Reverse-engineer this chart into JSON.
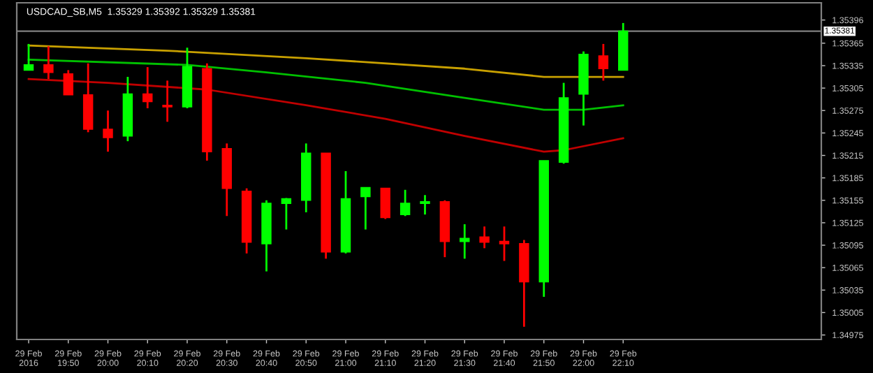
{
  "chart_data": {
    "type": "candlestick",
    "title": "USDCAD_SB,M5  1.35329 1.35392 1.35329 1.35381",
    "x": [
      "2016-02-29T19:40",
      "2016-02-29T19:45",
      "2016-02-29T19:50",
      "2016-02-29T19:55",
      "2016-02-29T20:00",
      "2016-02-29T20:05",
      "2016-02-29T20:10",
      "2016-02-29T20:15",
      "2016-02-29T20:20",
      "2016-02-29T20:25",
      "2016-02-29T20:30",
      "2016-02-29T20:35",
      "2016-02-29T20:40",
      "2016-02-29T20:45",
      "2016-02-29T20:50",
      "2016-02-29T20:55",
      "2016-02-29T21:00",
      "2016-02-29T21:05",
      "2016-02-29T21:10",
      "2016-02-29T21:15",
      "2016-02-29T21:20",
      "2016-02-29T21:25",
      "2016-02-29T21:30",
      "2016-02-29T21:35",
      "2016-02-29T21:40",
      "2016-02-29T21:45",
      "2016-02-29T21:50",
      "2016-02-29T21:55",
      "2016-02-29T22:00",
      "2016-02-29T22:05",
      "2016-02-29T22:10"
    ],
    "ohlc": [
      [
        1.35329,
        1.35364,
        1.35329,
        1.35336
      ],
      [
        1.35336,
        1.35361,
        1.35317,
        1.35326
      ],
      [
        1.35324,
        1.35329,
        1.35296,
        1.35296
      ],
      [
        1.35296,
        1.35338,
        1.35246,
        1.3525
      ],
      [
        1.3525,
        1.35275,
        1.3522,
        1.35239
      ],
      [
        1.35241,
        1.3532,
        1.35234,
        1.35297
      ],
      [
        1.35297,
        1.35333,
        1.35278,
        1.35287
      ],
      [
        1.35282,
        1.35315,
        1.3526,
        1.3528
      ],
      [
        1.3528,
        1.35359,
        1.35278,
        1.35334
      ],
      [
        1.35331,
        1.35338,
        1.35208,
        1.3522
      ],
      [
        1.35224,
        1.35231,
        1.35134,
        1.35171
      ],
      [
        1.35167,
        1.35171,
        1.35084,
        1.35099
      ],
      [
        1.35097,
        1.35155,
        1.3506,
        1.35151
      ],
      [
        1.35151,
        1.35158,
        1.35116,
        1.35157
      ],
      [
        1.35155,
        1.35231,
        1.35139,
        1.35218
      ],
      [
        1.35218,
        1.35218,
        1.35077,
        1.35086
      ],
      [
        1.35086,
        1.35194,
        1.35084,
        1.35157
      ],
      [
        1.3516,
        1.35172,
        1.35116,
        1.35172
      ],
      [
        1.35171,
        1.35171,
        1.3513,
        1.35132
      ],
      [
        1.35136,
        1.35169,
        1.35134,
        1.35151
      ],
      [
        1.35151,
        1.35162,
        1.35136,
        1.35153
      ],
      [
        1.35153,
        1.35155,
        1.35079,
        1.351
      ],
      [
        1.351,
        1.35123,
        1.35077,
        1.35104
      ],
      [
        1.35106,
        1.3512,
        1.35091,
        1.35099
      ],
      [
        1.351,
        1.3512,
        1.35074,
        1.35097
      ],
      [
        1.35097,
        1.35102,
        1.34986,
        1.35046
      ],
      [
        1.35046,
        1.35208,
        1.35026,
        1.35208
      ],
      [
        1.35206,
        1.35312,
        1.35204,
        1.35292
      ],
      [
        1.35297,
        1.35354,
        1.35255,
        1.3535
      ],
      [
        1.35348,
        1.35364,
        1.35315,
        1.35331
      ],
      [
        1.35329,
        1.35392,
        1.35329,
        1.35381
      ]
    ],
    "colors": [
      "#00ff00",
      "#ff0000",
      "#ff0000",
      "#ff0000",
      "#ff0000",
      "#00ff00",
      "#ff0000",
      "#ff0000",
      "#00ff00",
      "#ff0000",
      "#ff0000",
      "#ff0000",
      "#00ff00",
      "#00ff00",
      "#00ff00",
      "#ff0000",
      "#00ff00",
      "#00ff00",
      "#ff0000",
      "#00ff00",
      "#00ff00",
      "#ff0000",
      "#00ff00",
      "#ff0000",
      "#ff0000",
      "#ff0000",
      "#00ff00",
      "#00ff00",
      "#00ff00",
      "#ff0000",
      "#00ff00"
    ],
    "series": [
      {
        "type": "line",
        "color": "#c8a000",
        "x": [
          "2016-02-29T19:40",
          "2016-02-29T20:15",
          "2016-02-29T20:50",
          "2016-02-29T21:30",
          "2016-02-29T21:50",
          "2016-02-29T22:10"
        ],
        "values": [
          1.35362,
          1.35355,
          1.35345,
          1.35331,
          1.3532,
          1.3532
        ]
      },
      {
        "type": "line",
        "color": "#00c000",
        "x": [
          "2016-02-29T19:40",
          "2016-02-29T20:20",
          "2016-02-29T20:40",
          "2016-02-29T21:05",
          "2016-02-29T21:30",
          "2016-02-29T21:50",
          "2016-02-29T22:00",
          "2016-02-29T22:10"
        ],
        "values": [
          1.35343,
          1.35336,
          1.35326,
          1.35312,
          1.35292,
          1.35276,
          1.35276,
          1.35282
        ]
      },
      {
        "type": "line",
        "color": "#c00000",
        "x": [
          "2016-02-29T19:40",
          "2016-02-29T20:00",
          "2016-02-29T20:25",
          "2016-02-29T20:50",
          "2016-02-29T21:10",
          "2016-02-29T21:30",
          "2016-02-29T21:50",
          "2016-02-29T21:55",
          "2016-02-29T22:10"
        ],
        "values": [
          1.35317,
          1.35312,
          1.35303,
          1.35282,
          1.35264,
          1.35241,
          1.3522,
          1.35222,
          1.35238
        ]
      }
    ],
    "xlim": [
      "2016-02-29T19:37",
      "2016-02-29T23:00"
    ],
    "xticks": [
      {
        "value": "2016-02-29T19:40",
        "label": "29 Feb 2016"
      },
      {
        "value": "2016-02-29T19:50",
        "label": "29 Feb 19:50"
      },
      {
        "value": "2016-02-29T20:00",
        "label": "29 Feb 20:00"
      },
      {
        "value": "2016-02-29T20:10",
        "label": "29 Feb 20:10"
      },
      {
        "value": "2016-02-29T20:20",
        "label": "29 Feb 20:20"
      },
      {
        "value": "2016-02-29T20:30",
        "label": "29 Feb 20:30"
      },
      {
        "value": "2016-02-29T20:40",
        "label": "29 Feb 20:40"
      },
      {
        "value": "2016-02-29T20:50",
        "label": "29 Feb 20:50"
      },
      {
        "value": "2016-02-29T21:00",
        "label": "29 Feb 21:00"
      },
      {
        "value": "2016-02-29T21:10",
        "label": "29 Feb 21:10"
      },
      {
        "value": "2016-02-29T21:20",
        "label": "29 Feb 21:20"
      },
      {
        "value": "2016-02-29T21:30",
        "label": "29 Feb 21:30"
      },
      {
        "value": "2016-02-29T21:40",
        "label": "29 Feb 21:40"
      },
      {
        "value": "2016-02-29T21:50",
        "label": "29 Feb 21:50"
      },
      {
        "value": "2016-02-29T22:00",
        "label": "29 Feb 22:00"
      },
      {
        "value": "2016-02-29T22:10",
        "label": "29 Feb 22:10"
      }
    ],
    "ylim": [
      1.34969,
      1.35419
    ],
    "yticks": [
      1.35396,
      1.35365,
      1.35335,
      1.35305,
      1.35275,
      1.35245,
      1.35215,
      1.35185,
      1.35155,
      1.35125,
      1.35095,
      1.35065,
      1.35035,
      1.35005,
      1.34975
    ],
    "ref_lines": [
      {
        "axis": "y",
        "value": 1.35381,
        "label": "1.35381",
        "color": "#808080"
      }
    ],
    "grid": false,
    "legend": false
  }
}
